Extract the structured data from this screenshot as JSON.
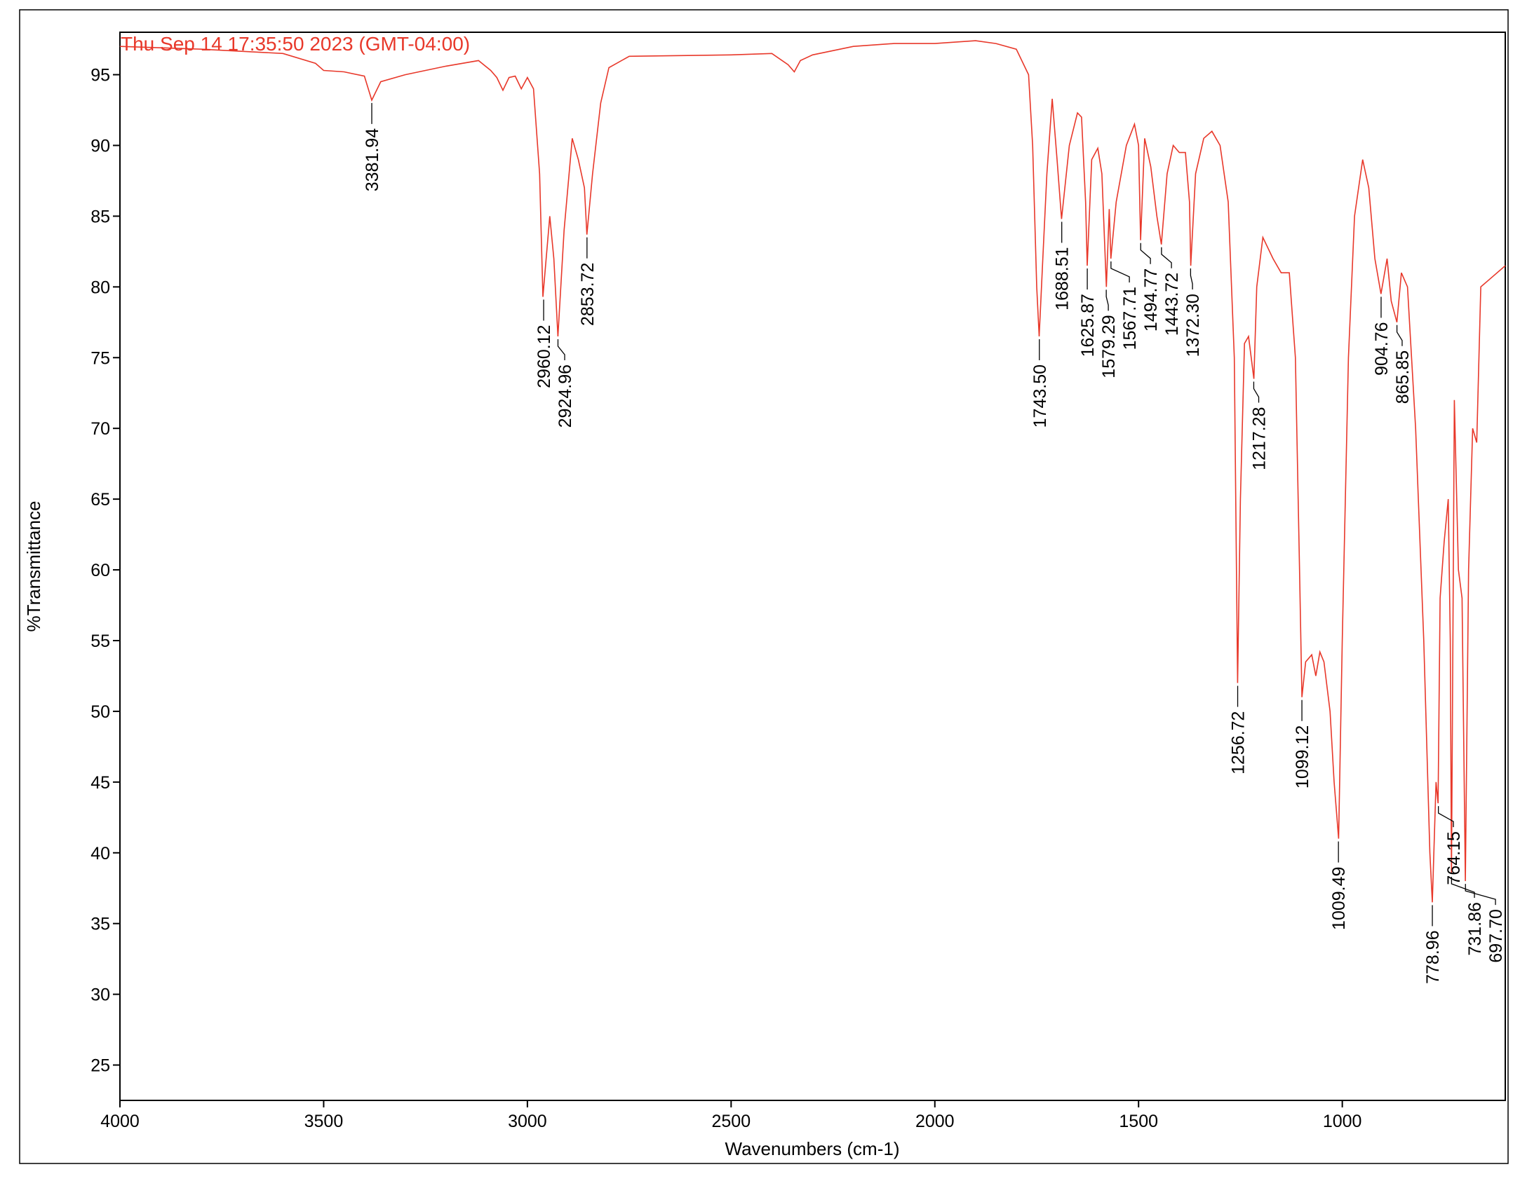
{
  "chart_data": {
    "type": "line",
    "title": "Thu Sep 14 17:35:50 2023 (GMT-04:00)",
    "x_label": "Wavenumbers (cm-1)",
    "y_label": "%Transmittance",
    "xlim": [
      4000,
      600
    ],
    "ylim": [
      22.5,
      98
    ],
    "xticks": [
      4000,
      3500,
      3000,
      2500,
      2000,
      1500,
      1000
    ],
    "yticks": [
      25,
      30,
      35,
      40,
      45,
      50,
      55,
      60,
      65,
      70,
      75,
      80,
      85,
      90,
      95
    ],
    "grid": false,
    "color": "#e8382a",
    "x": [
      4000,
      3800,
      3600,
      3520,
      3500,
      3450,
      3400,
      3382,
      3360,
      3300,
      3200,
      3120,
      3090,
      3075,
      3060,
      3045,
      3030,
      3015,
      3000,
      2985,
      2970,
      2962,
      2945,
      2935,
      2925,
      2910,
      2890,
      2875,
      2860,
      2854,
      2840,
      2820,
      2800,
      2750,
      2500,
      2400,
      2360,
      2345,
      2330,
      2300,
      2200,
      2100,
      2000,
      1900,
      1850,
      1800,
      1770,
      1760,
      1750,
      1744,
      1735,
      1725,
      1712,
      1700,
      1689,
      1670,
      1650,
      1640,
      1630,
      1626,
      1615,
      1600,
      1590,
      1579,
      1572,
      1568,
      1555,
      1530,
      1510,
      1500,
      1495,
      1485,
      1470,
      1455,
      1444,
      1430,
      1415,
      1400,
      1385,
      1375,
      1372,
      1360,
      1340,
      1320,
      1300,
      1280,
      1265,
      1257,
      1250,
      1240,
      1230,
      1217,
      1210,
      1195,
      1170,
      1150,
      1130,
      1115,
      1105,
      1099,
      1090,
      1075,
      1065,
      1055,
      1045,
      1030,
      1020,
      1009,
      1000,
      985,
      970,
      950,
      935,
      920,
      905,
      890,
      880,
      866,
      855,
      840,
      820,
      800,
      785,
      779,
      770,
      765,
      760,
      750,
      740,
      735,
      732,
      725,
      715,
      706,
      698,
      690,
      680,
      670,
      660,
      640,
      600
    ],
    "values": [
      97.0,
      96.8,
      96.5,
      95.8,
      95.3,
      95.2,
      94.9,
      93.2,
      94.5,
      95.0,
      95.6,
      96.0,
      95.3,
      94.8,
      93.9,
      94.8,
      94.9,
      94.0,
      94.8,
      94.0,
      88,
      79.3,
      85,
      82,
      76.5,
      84,
      90.5,
      89,
      87,
      83.7,
      88,
      93,
      95.5,
      96.3,
      96.4,
      96.5,
      95.7,
      95.2,
      96,
      96.4,
      97,
      97.2,
      97.2,
      97.4,
      97.2,
      96.8,
      95,
      90,
      80,
      76.5,
      82,
      88,
      93.3,
      89,
      84.8,
      90,
      92.3,
      92,
      86,
      81.5,
      89,
      89.8,
      88,
      80,
      85.5,
      82,
      86,
      90,
      91.5,
      90,
      83.3,
      90.5,
      88.5,
      85,
      83,
      88,
      90,
      89.5,
      89.5,
      86,
      81.5,
      88,
      90.5,
      91,
      90,
      86,
      75,
      52,
      65,
      76,
      76.5,
      73.5,
      80,
      83.5,
      82,
      81,
      81,
      75,
      60,
      51,
      53.5,
      54,
      52.5,
      54.2,
      53.5,
      50,
      45,
      41,
      55,
      75,
      85,
      89,
      87,
      82,
      79.5,
      82,
      79,
      77.5,
      81,
      80,
      70,
      55,
      40,
      36.5,
      45,
      43.5,
      58,
      62,
      65,
      55,
      38.5,
      72,
      60,
      58,
      38,
      60,
      70,
      69,
      80,
      80.5,
      81.5
    ],
    "peaks": {
      "x": [
        3381.94,
        2960.12,
        2924.96,
        2853.72,
        1743.5,
        1688.51,
        1625.87,
        1579.29,
        1567.71,
        1494.77,
        1443.72,
        1372.3,
        1256.72,
        1217.28,
        1099.12,
        1009.49,
        904.76,
        865.85,
        778.96,
        764.15,
        731.86,
        697.7
      ],
      "y": [
        93.2,
        79.3,
        76.5,
        83.7,
        76.5,
        84.8,
        81.5,
        80,
        82,
        83.3,
        83,
        81.5,
        52,
        73.5,
        51,
        41,
        79.5,
        77.5,
        36.5,
        43.5,
        38.5,
        38
      ],
      "labels": [
        "3381.94",
        "2960.12",
        "2924.96",
        "2853.72",
        "1743.50",
        "1688.51",
        "1625.87",
        "1579.29",
        "1567.71",
        "1494.77",
        "1443.72",
        "1372.30",
        "1256.72",
        "1217.28",
        "1099.12",
        "1009.49",
        "904.76",
        "865.85",
        "778.96",
        "764.15",
        "731.86",
        "697.70"
      ]
    }
  }
}
